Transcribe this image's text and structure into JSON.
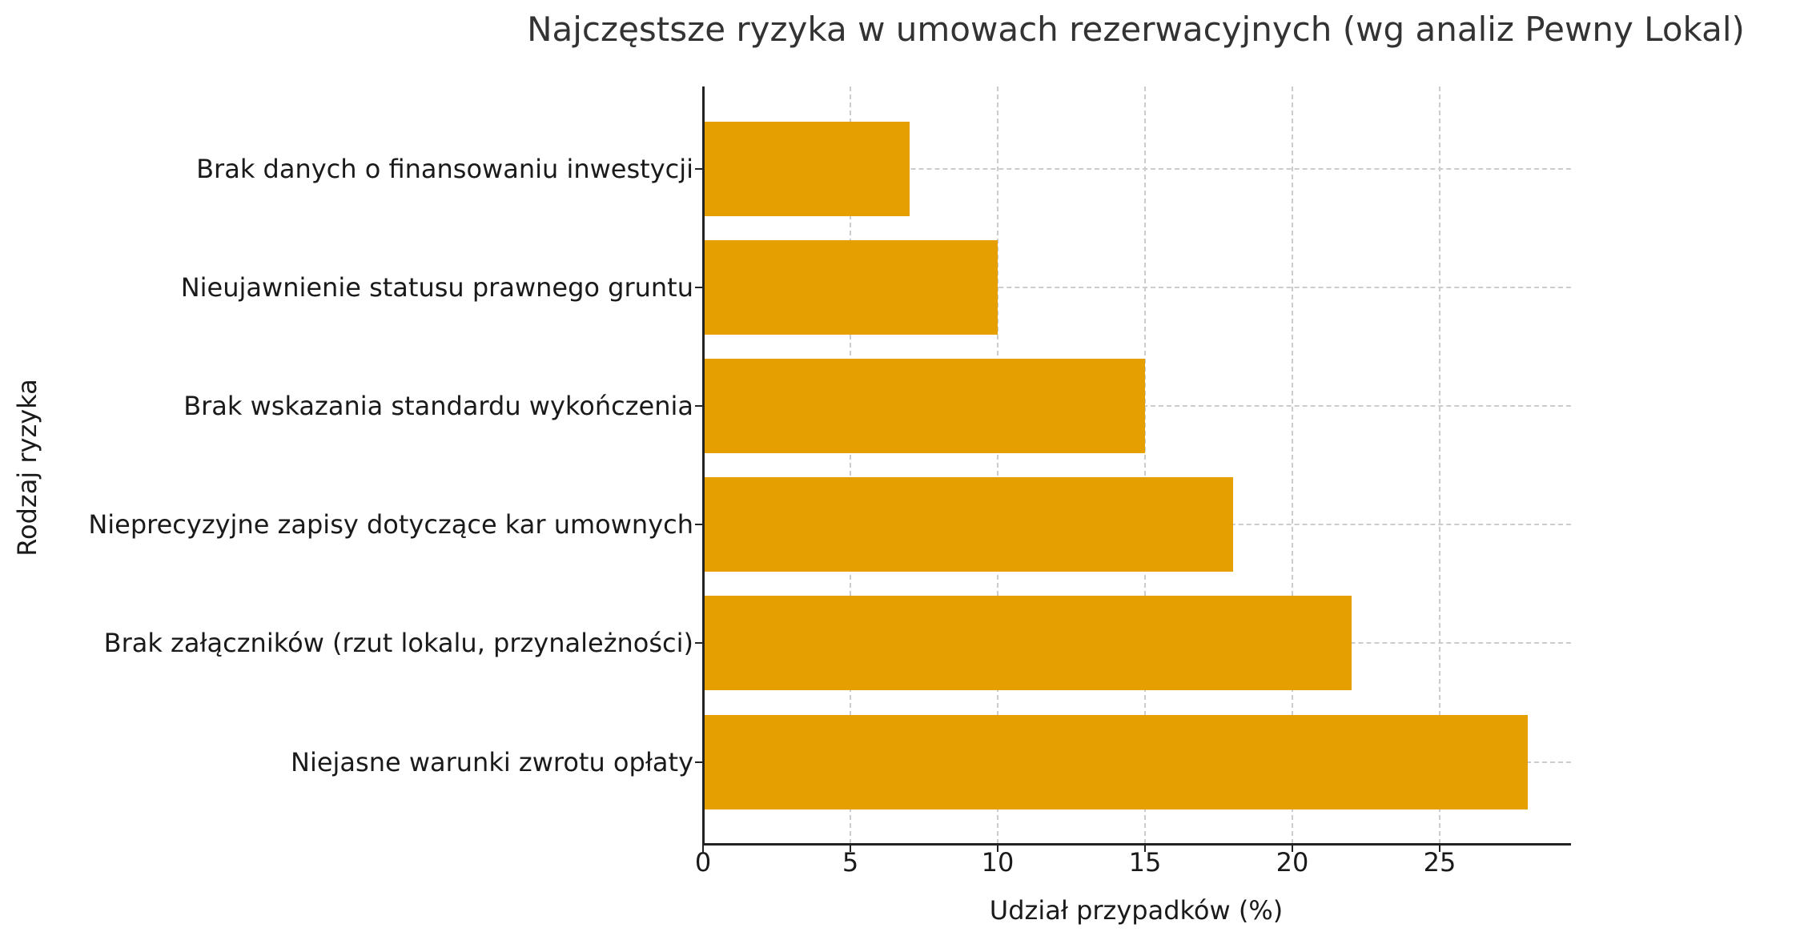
{
  "chart_data": {
    "type": "bar",
    "orientation": "horizontal",
    "title": "Najczęstsze ryzyka w umowach rezerwacyjnych (wg analiz Pewny Lokal)",
    "xlabel": "Udział przypadków (%)",
    "ylabel": "Rodzaj ryzyka",
    "categories": [
      "Brak danych o finansowaniu inwestycji",
      "Nieujawnienie statusu prawnego gruntu",
      "Brak wskazania standardu wykończenia",
      "Nieprecyzyjne zapisy dotyczące kar umownych",
      "Brak załączników (rzut lokalu, przynależności)",
      "Niejasne warunki zwrotu opłaty"
    ],
    "values": [
      7,
      10,
      15,
      18,
      22,
      28
    ],
    "xlim": [
      0,
      29.4
    ],
    "xticks": [
      "0",
      "5",
      "10",
      "15",
      "20",
      "25"
    ],
    "grid": true,
    "grid_style": "dashed",
    "bar_color": "#E69F00",
    "legend": null
  },
  "colors": {
    "bar": "#E69F00",
    "grid": "#cccccc",
    "axis": "#222222",
    "title": "#333333"
  }
}
